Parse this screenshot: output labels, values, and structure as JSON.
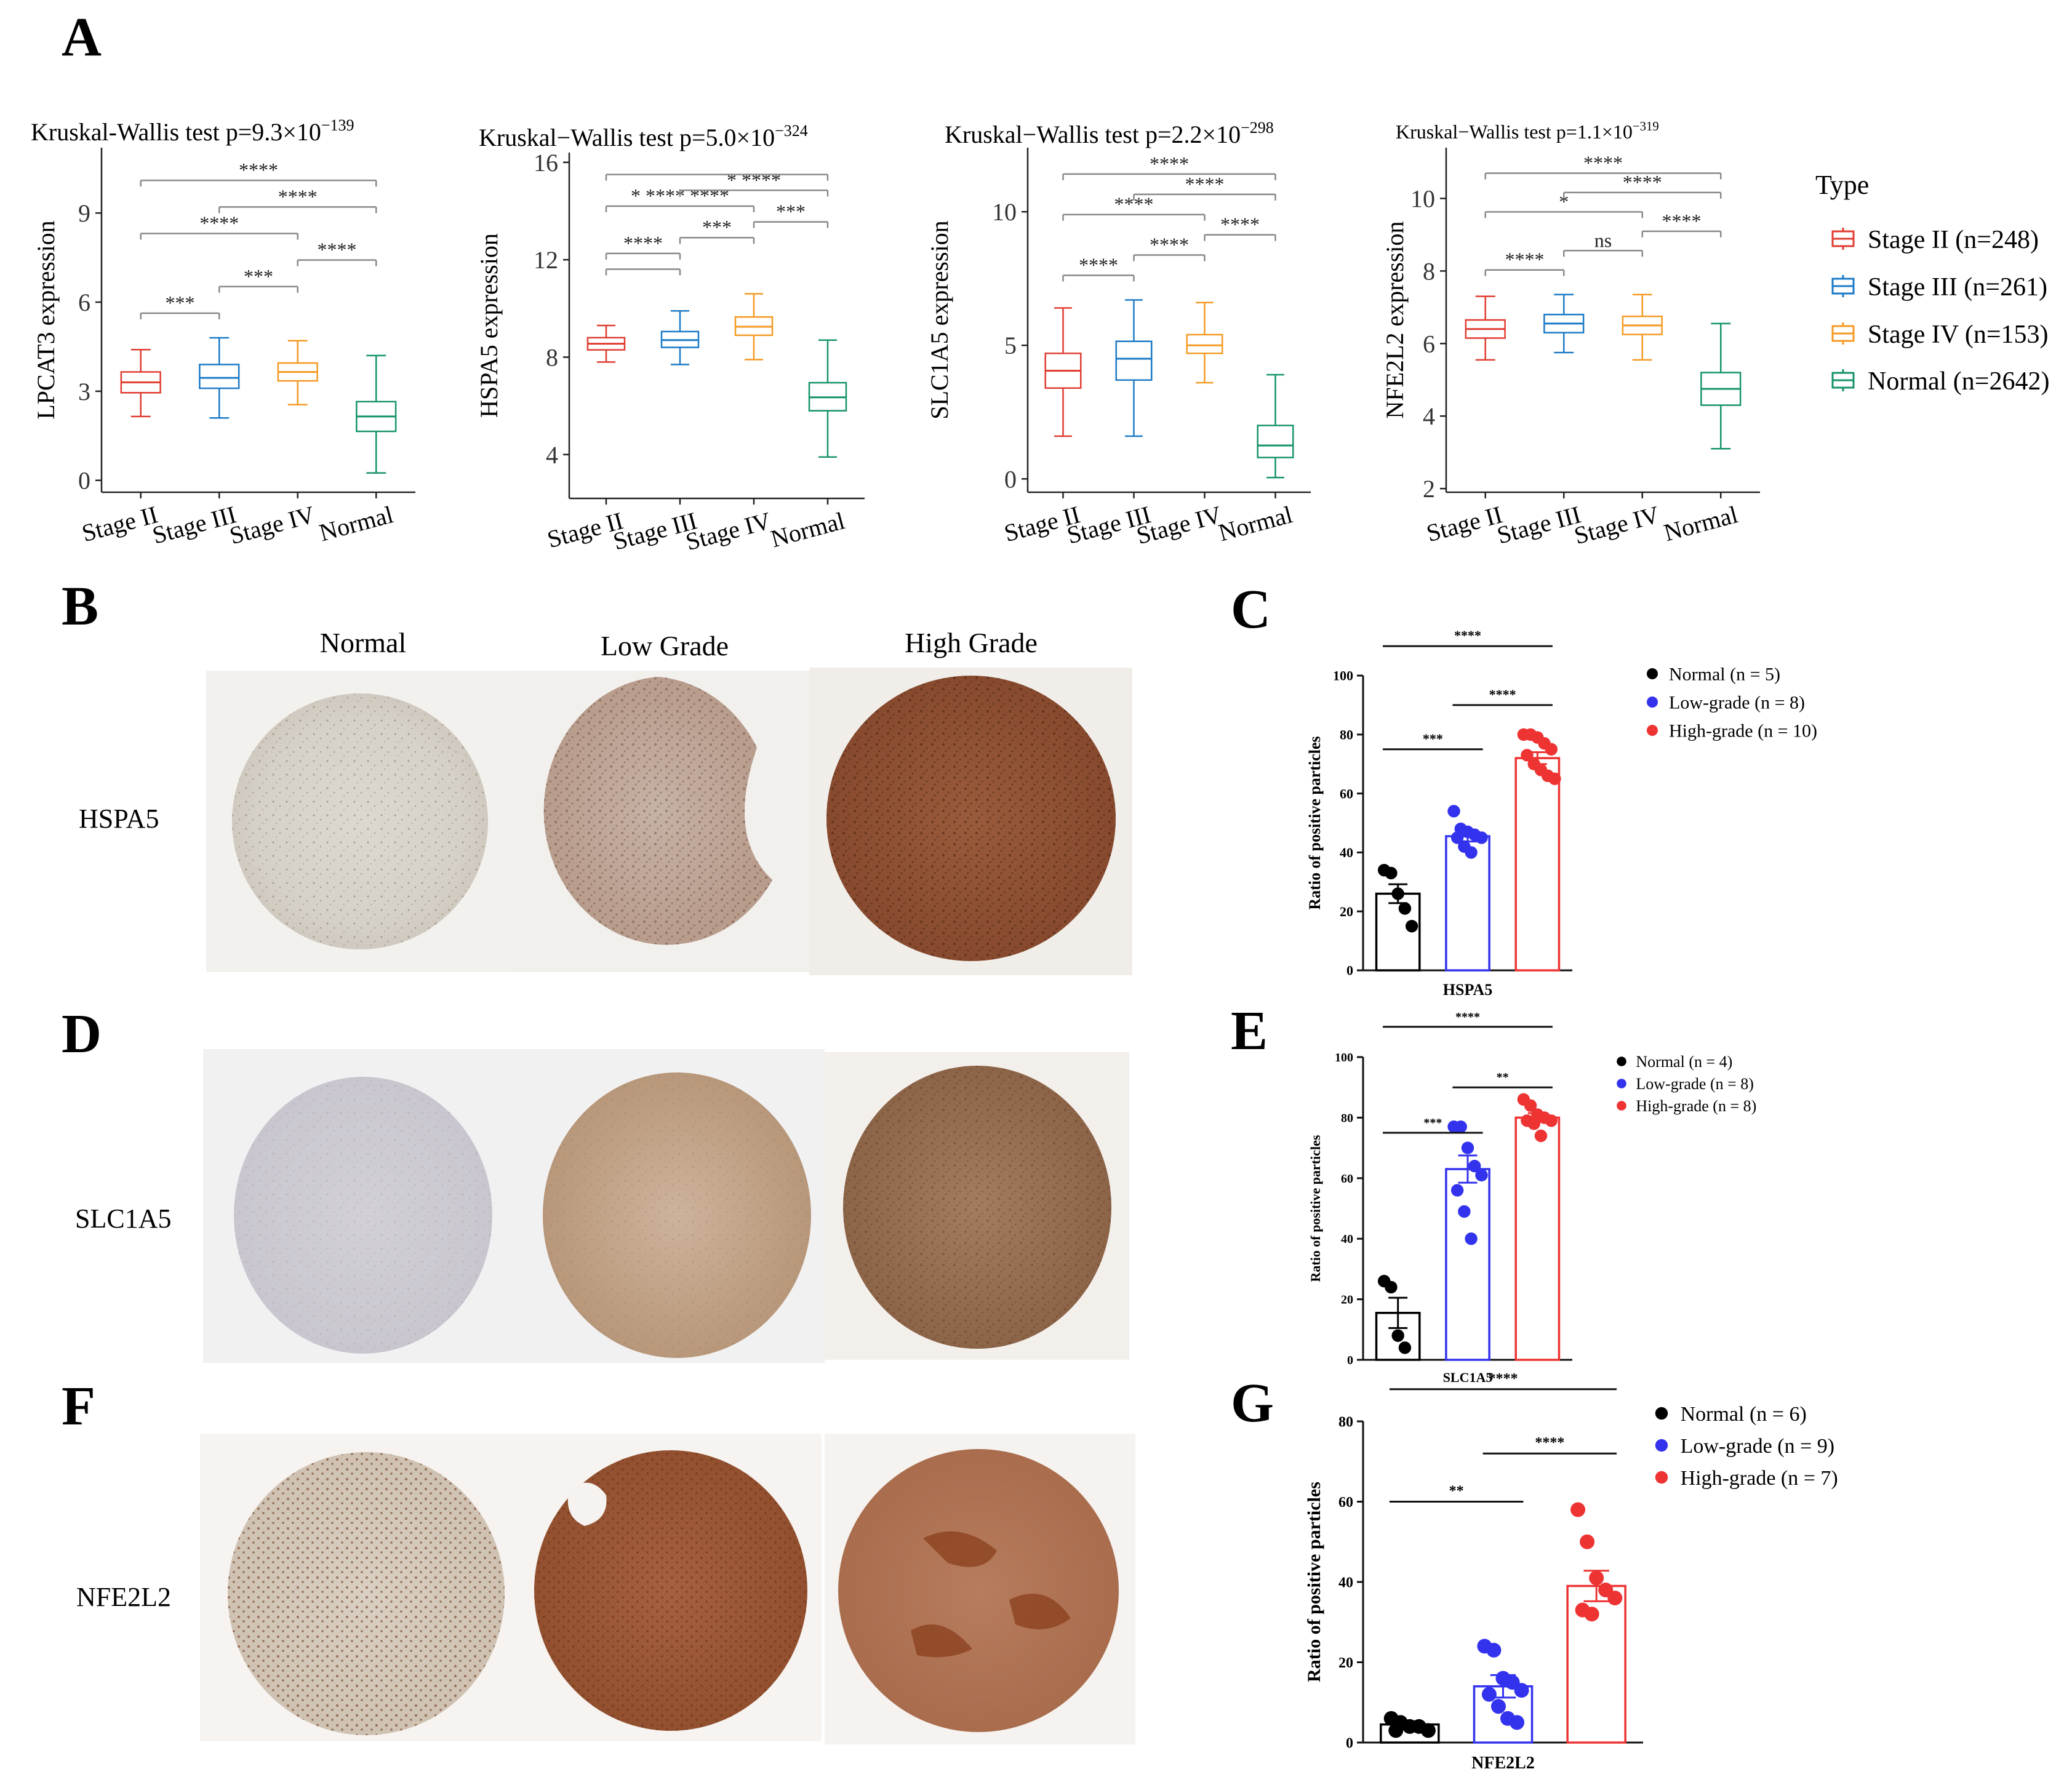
{
  "panel_letters": [
    "A",
    "B",
    "C",
    "D",
    "E",
    "F",
    "G"
  ],
  "colors": {
    "stage2": "#E03C31",
    "stage3": "#1B7AC6",
    "stage4": "#F59A23",
    "normal": "#15936A",
    "normal_dot": "#000000",
    "low_dot": "#3333EE",
    "high_dot": "#EE3333"
  },
  "panelA": {
    "legend_title": "Type",
    "legend": [
      "Stage II (n=248)",
      "Stage III (n=261)",
      "Stage IV (n=153)",
      "Normal (n=2642)"
    ],
    "groups": [
      "Stage II",
      "Stage III",
      "Stage IV",
      "Normal"
    ]
  },
  "tissue": {
    "col_headers": [
      "Normal",
      "Low Grade",
      "High Grade"
    ],
    "row_labels": [
      "HSPA5",
      "SLC1A5",
      "NFE2L2"
    ]
  },
  "chart_data": [
    {
      "type": "box",
      "title_prefix": "Kruskal-Wallis test p=",
      "title_mant": "9.3×10",
      "title_exp": "−139",
      "ylabel": "LPCAT3 expression",
      "categories": [
        "Stage II",
        "Stage III",
        "Stage IV",
        "Normal"
      ],
      "ylim": [
        -0.4,
        11.2
      ],
      "yticks": [
        0,
        3,
        6,
        9
      ],
      "boxes": [
        {
          "min": 2.15,
          "q1": 2.95,
          "median": 3.3,
          "q3": 3.65,
          "max": 4.4
        },
        {
          "min": 2.1,
          "q1": 3.1,
          "median": 3.45,
          "q3": 3.9,
          "max": 4.8
        },
        {
          "min": 2.55,
          "q1": 3.35,
          "median": 3.65,
          "q3": 3.95,
          "max": 4.7
        },
        {
          "min": 0.25,
          "q1": 1.65,
          "median": 2.15,
          "q3": 2.65,
          "max": 4.2
        }
      ],
      "brackets": [
        {
          "a": 0,
          "b": 1,
          "label": "***"
        },
        {
          "a": 0,
          "b": 2,
          "label": "****"
        },
        {
          "a": 0,
          "b": 3,
          "label": "****"
        },
        {
          "a": 1,
          "b": 2,
          "label": "***"
        },
        {
          "a": 1,
          "b": 3,
          "label": "****"
        },
        {
          "a": 2,
          "b": 3,
          "label": "****"
        }
      ]
    },
    {
      "type": "box",
      "title_prefix": "Kruskal−Wallis test p=",
      "title_mant": "5.0×10",
      "title_exp": "−324",
      "ylabel": "HSPA5 expression",
      "categories": [
        "Stage II",
        "Stage III",
        "Stage IV",
        "Normal"
      ],
      "ylim": [
        2.2,
        16.4
      ],
      "yticks": [
        4,
        8,
        12,
        16
      ],
      "boxes": [
        {
          "min": 7.8,
          "q1": 8.3,
          "median": 8.55,
          "q3": 8.8,
          "max": 9.3
        },
        {
          "min": 7.7,
          "q1": 8.4,
          "median": 8.7,
          "q3": 9.05,
          "max": 9.9
        },
        {
          "min": 7.9,
          "q1": 8.9,
          "median": 9.25,
          "q3": 9.65,
          "max": 10.6
        },
        {
          "min": 3.9,
          "q1": 5.8,
          "median": 6.35,
          "q3": 6.95,
          "max": 8.7
        }
      ],
      "brackets": [
        {
          "a": 0,
          "b": 1,
          "label": ""
        },
        {
          "a": 0,
          "b": 1,
          "label": "****"
        },
        {
          "a": 0,
          "b": 2,
          "label": "* **** ****"
        },
        {
          "a": 0,
          "b": 3,
          "label": ""
        },
        {
          "a": 1,
          "b": 2,
          "label": "***"
        },
        {
          "a": 1,
          "b": 3,
          "label": "* ****"
        },
        {
          "a": 2,
          "b": 3,
          "label": "***"
        }
      ]
    },
    {
      "type": "box",
      "title_prefix": "Kruskal−Wallis test p=",
      "title_mant": "2.2×10",
      "title_exp": "−298",
      "ylabel": "SLC1A5 expression",
      "categories": [
        "Stage II",
        "Stage III",
        "Stage IV",
        "Normal"
      ],
      "ylim": [
        -0.5,
        12.4
      ],
      "yticks": [
        0,
        5,
        10
      ],
      "boxes": [
        {
          "min": 1.6,
          "q1": 3.4,
          "median": 4.05,
          "q3": 4.7,
          "max": 6.4
        },
        {
          "min": 1.6,
          "q1": 3.7,
          "median": 4.5,
          "q3": 5.15,
          "max": 6.7
        },
        {
          "min": 3.6,
          "q1": 4.7,
          "median": 5.0,
          "q3": 5.4,
          "max": 6.6
        },
        {
          "min": 0.05,
          "q1": 0.8,
          "median": 1.25,
          "q3": 2.0,
          "max": 3.9
        }
      ],
      "brackets": [
        {
          "a": 0,
          "b": 1,
          "label": "****"
        },
        {
          "a": 0,
          "b": 2,
          "label": "****"
        },
        {
          "a": 0,
          "b": 3,
          "label": "****"
        },
        {
          "a": 1,
          "b": 2,
          "label": "****"
        },
        {
          "a": 1,
          "b": 3,
          "label": "****"
        },
        {
          "a": 2,
          "b": 3,
          "label": "****"
        }
      ]
    },
    {
      "type": "box",
      "title_prefix": "Kruskal−Wallis test p=",
      "title_mant": "1.1×10",
      "title_exp": "−319",
      "ylabel": "NFE2L2 expression",
      "categories": [
        "Stage II",
        "Stage III",
        "Stage IV",
        "Normal"
      ],
      "ylim": [
        1.9,
        11.4
      ],
      "yticks": [
        2,
        4,
        6,
        8,
        10
      ],
      "boxes": [
        {
          "min": 5.55,
          "q1": 6.15,
          "median": 6.4,
          "q3": 6.65,
          "max": 7.3
        },
        {
          "min": 5.75,
          "q1": 6.3,
          "median": 6.55,
          "q3": 6.8,
          "max": 7.35
        },
        {
          "min": 5.55,
          "q1": 6.25,
          "median": 6.5,
          "q3": 6.75,
          "max": 7.35
        },
        {
          "min": 3.1,
          "q1": 4.3,
          "median": 4.75,
          "q3": 5.2,
          "max": 6.55
        }
      ],
      "brackets": [
        {
          "a": 0,
          "b": 1,
          "label": "****"
        },
        {
          "a": 0,
          "b": 2,
          "label": "*"
        },
        {
          "a": 0,
          "b": 3,
          "label": "****"
        },
        {
          "a": 1,
          "b": 2,
          "label": "ns"
        },
        {
          "a": 1,
          "b": 3,
          "label": "****"
        },
        {
          "a": 2,
          "b": 3,
          "label": "****"
        }
      ]
    },
    {
      "type": "bar",
      "xlabel": "HSPA5",
      "ylabel": "Ratio of positive particles",
      "ylim": [
        0,
        100
      ],
      "yticks": [
        0,
        20,
        40,
        60,
        80,
        100
      ],
      "legend": [
        "Normal (n = 5)",
        "Low-grade (n = 8)",
        "High-grade (n = 10)"
      ],
      "means": [
        26,
        45.5,
        72
      ],
      "sem": [
        3.2,
        1.8,
        2.0
      ],
      "points": [
        [
          34,
          33,
          26,
          21,
          15
        ],
        [
          54,
          48,
          47,
          46,
          45,
          45,
          42,
          40
        ],
        [
          80,
          80,
          79,
          77,
          75,
          73,
          70,
          68,
          66,
          65
        ]
      ],
      "sig": [
        {
          "a": 0,
          "b": 1,
          "label": "***"
        },
        {
          "a": 1,
          "b": 2,
          "label": "****"
        },
        {
          "a": 0,
          "b": 2,
          "label": "****"
        }
      ]
    },
    {
      "type": "bar",
      "xlabel": "SLC1A5",
      "ylabel": "Ratio of positive particles",
      "ylim": [
        0,
        100
      ],
      "yticks": [
        0,
        20,
        40,
        60,
        80,
        100
      ],
      "legend": [
        "Normal (n = 4)",
        "Low-grade (n = 8)",
        "High-grade (n = 8)"
      ],
      "means": [
        15.5,
        63,
        80
      ],
      "sem": [
        5.0,
        4.5,
        1.5
      ],
      "points": [
        [
          26,
          24,
          8,
          4
        ],
        [
          77,
          77,
          70,
          64,
          61,
          56,
          49,
          40
        ],
        [
          86,
          84,
          81,
          80,
          79,
          79,
          78,
          74
        ]
      ],
      "sig": [
        {
          "a": 0,
          "b": 1,
          "label": "***"
        },
        {
          "a": 1,
          "b": 2,
          "label": "**"
        },
        {
          "a": 0,
          "b": 2,
          "label": "****"
        }
      ]
    },
    {
      "type": "bar",
      "xlabel": "NFE2L2",
      "ylabel": "Ratio of positive particles",
      "ylim": [
        0,
        80
      ],
      "yticks": [
        0,
        20,
        40,
        60,
        80
      ],
      "legend": [
        "Normal (n = 6)",
        "Low-grade (n = 9)",
        "High-grade (n = 7)"
      ],
      "means": [
        4.5,
        14,
        39
      ],
      "sem": [
        0.8,
        2.8,
        3.8
      ],
      "points": [
        [
          6,
          5,
          4,
          4,
          3,
          3
        ],
        [
          24,
          23,
          16,
          15,
          13,
          12,
          9,
          6,
          5
        ],
        [
          58,
          50,
          41,
          38,
          36,
          33,
          32
        ]
      ],
      "sig": [
        {
          "a": 0,
          "b": 1,
          "label": "**"
        },
        {
          "a": 1,
          "b": 2,
          "label": "****"
        },
        {
          "a": 0,
          "b": 2,
          "label": "****"
        }
      ]
    }
  ]
}
